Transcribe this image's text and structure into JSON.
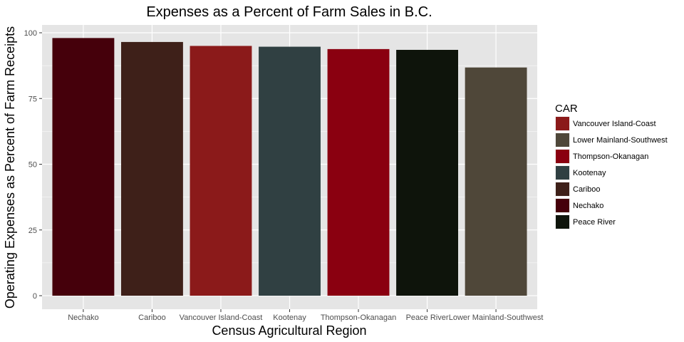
{
  "chart_data": {
    "type": "bar",
    "title": "Expenses as a Percent of Farm Sales in B.C.",
    "xlabel": "Census Agricultural Region",
    "ylabel": "Operating Expenses as Percent of Farm Receipts",
    "categories": [
      "Nechako",
      "Cariboo",
      "Vancouver Island-Coast",
      "Kootenay",
      "Thompson-Okanagan",
      "Peace River",
      "Lower Mainland-Southwest"
    ],
    "values": [
      98.0,
      96.5,
      95.0,
      94.7,
      93.8,
      93.5,
      86.8
    ],
    "bar_colors": [
      "#45000b",
      "#3e2019",
      "#8b1a1a",
      "#304042",
      "#8a0010",
      "#0e140b",
      "#4f4739"
    ],
    "ylim": [
      0,
      100
    ],
    "yticks": [
      0,
      25,
      50,
      75,
      100
    ],
    "grid": true,
    "legend_placement": "right",
    "legend": {
      "title": "CAR",
      "items": [
        {
          "label": "Vancouver Island-Coast",
          "color": "#8b1a1a"
        },
        {
          "label": "Lower Mainland-Southwest",
          "color": "#4f4739"
        },
        {
          "label": "Thompson-Okanagan",
          "color": "#8a0010"
        },
        {
          "label": "Kootenay",
          "color": "#304042"
        },
        {
          "label": "Cariboo",
          "color": "#3e2019"
        },
        {
          "label": "Nechako",
          "color": "#45000b"
        },
        {
          "label": "Peace River",
          "color": "#0e140b"
        }
      ]
    },
    "panel_background": "#e5e5e5",
    "gridline_color": "#ffffff"
  }
}
